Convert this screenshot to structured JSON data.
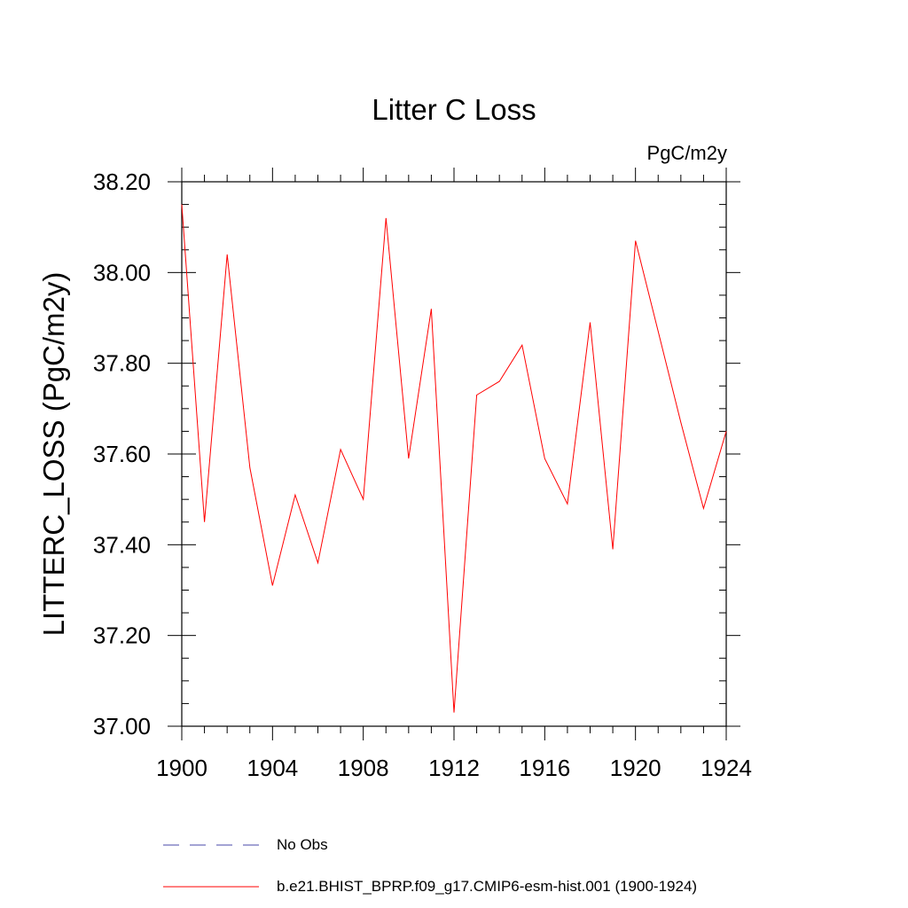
{
  "chart_data": {
    "type": "line",
    "title": "Litter C Loss",
    "units_label": "PgC/m2y",
    "ylabel": "LITTERC_LOSS  (PgC/m2y)",
    "xlabel": "",
    "xlim": [
      1900,
      1924
    ],
    "ylim": [
      37.0,
      38.2
    ],
    "x_ticks": [
      1900,
      1904,
      1908,
      1912,
      1916,
      1920,
      1924
    ],
    "x_tick_labels": [
      "1900",
      "1904",
      "1908",
      "1912",
      "1916",
      "1920",
      "1924"
    ],
    "y_ticks": [
      37.0,
      37.2,
      37.4,
      37.6,
      37.8,
      38.0,
      38.2
    ],
    "y_tick_labels": [
      "37.00",
      "37.20",
      "37.40",
      "37.60",
      "37.80",
      "38.00",
      "38.20"
    ],
    "grid": false,
    "series": [
      {
        "name": "b.e21.BHIST_BPRP.f09_g17.CMIP6-esm-hist.001 (1900-1924)",
        "color": "#ff0000",
        "style": "solid",
        "x": [
          1900,
          1901,
          1902,
          1903,
          1904,
          1905,
          1906,
          1907,
          1908,
          1909,
          1910,
          1911,
          1912,
          1913,
          1914,
          1915,
          1916,
          1917,
          1918,
          1919,
          1920,
          1921,
          1922,
          1923,
          1924
        ],
        "y": [
          38.15,
          37.45,
          38.04,
          37.57,
          37.31,
          37.51,
          37.36,
          37.61,
          37.5,
          38.12,
          37.59,
          37.92,
          37.03,
          37.73,
          37.76,
          37.84,
          37.59,
          37.49,
          37.89,
          37.39,
          38.07,
          37.87,
          37.67,
          37.48,
          37.65
        ]
      }
    ]
  },
  "legend": {
    "items": [
      {
        "label": "No Obs",
        "color": "#4a4aa8",
        "style": "dashed"
      },
      {
        "label": "b.e21.BHIST_BPRP.f09_g17.CMIP6-esm-hist.001 (1900-1924)",
        "color": "#ff0000",
        "style": "solid"
      }
    ]
  }
}
